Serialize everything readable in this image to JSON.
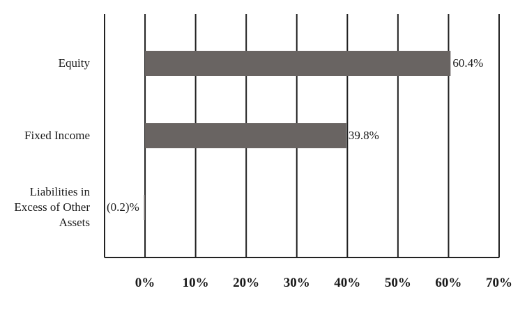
{
  "chart_data": {
    "type": "bar",
    "orientation": "horizontal",
    "categories": [
      "Equity",
      "Fixed Income",
      "Liabilities in Excess of Other Assets"
    ],
    "category_lines": [
      [
        "Equity"
      ],
      [
        "Fixed Income"
      ],
      [
        "Liabilities in",
        "Excess of Other",
        "Assets"
      ]
    ],
    "values": [
      60.4,
      39.8,
      -0.2
    ],
    "data_labels": [
      "60.4%",
      "39.8%",
      "(0.2)%"
    ],
    "xlim": [
      -8,
      70
    ],
    "x_ticks": [
      0,
      10,
      20,
      30,
      40,
      50,
      60,
      70
    ],
    "x_tick_labels": [
      "0%",
      "10%",
      "20%",
      "30%",
      "40%",
      "50%",
      "60%",
      "70%"
    ],
    "title": "",
    "xlabel": "",
    "ylabel": "",
    "grid": true,
    "legend": "none",
    "bar_color": "#696462"
  }
}
